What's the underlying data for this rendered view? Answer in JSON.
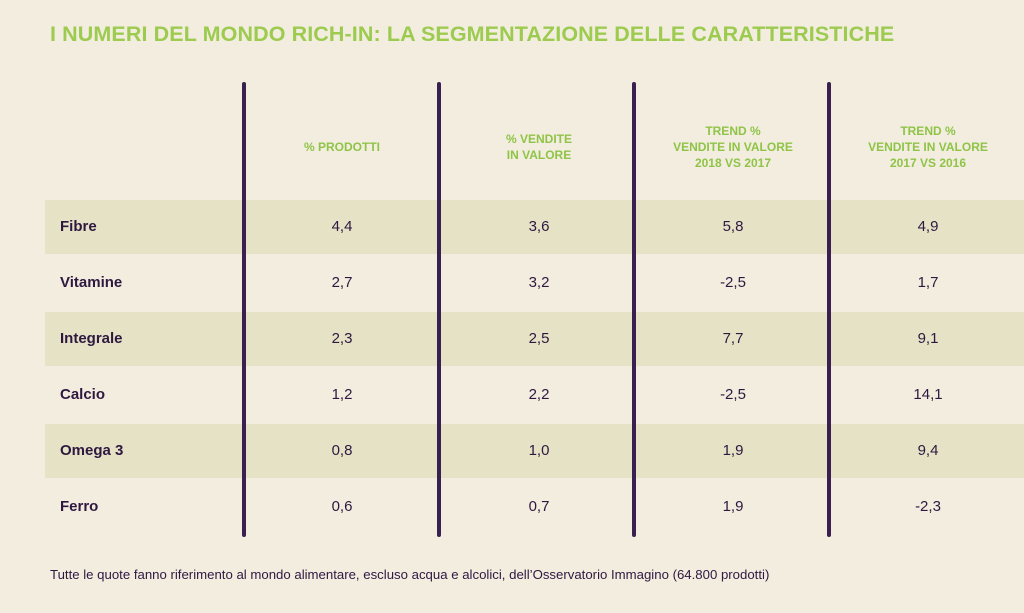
{
  "title": "I NUMERI DEL MONDO RICH-IN: LA SEGMENTAZIONE DELLE CARATTERISTICHE",
  "chart_data": {
    "type": "table",
    "title": "I NUMERI DEL MONDO RICH-IN: LA SEGMENTAZIONE DELLE CARATTERISTICHE",
    "columns": [
      "% PRODOTTI",
      "% VENDITE\nIN VALORE",
      "TREND %\nVENDITE IN VALORE\n2018 VS 2017",
      "TREND %\nVENDITE IN VALORE\n2017 VS 2016"
    ],
    "rows": [
      {
        "label": "Fibre",
        "values": [
          "4,4",
          "3,6",
          "5,8",
          "4,9"
        ]
      },
      {
        "label": "Vitamine",
        "values": [
          "2,7",
          "3,2",
          "-2,5",
          "1,7"
        ]
      },
      {
        "label": "Integrale",
        "values": [
          "2,3",
          "2,5",
          "7,7",
          "9,1"
        ]
      },
      {
        "label": "Calcio",
        "values": [
          "1,2",
          "2,2",
          "-2,5",
          "14,1"
        ]
      },
      {
        "label": "Omega 3",
        "values": [
          "0,8",
          "1,0",
          "1,9",
          "9,4"
        ]
      },
      {
        "label": "Ferro",
        "values": [
          "0,6",
          "0,7",
          "1,9",
          "-2,3"
        ]
      }
    ],
    "footnote": "Tutte le quote fanno riferimento al mondo alimentare, escluso acqua e alcolici, dell’Osservatorio Immagino (64.800 prodotti)"
  },
  "colors": {
    "background": "#f3eddf",
    "title": "#9ccb50",
    "header": "#8fc447",
    "text": "#2e1840",
    "divider": "#3a2050",
    "shaded_row": "#e6e2c6"
  }
}
